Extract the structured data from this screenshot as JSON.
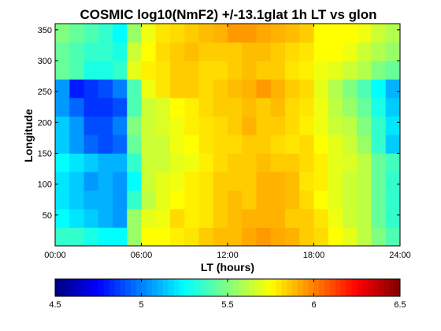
{
  "chart_data": {
    "type": "heatmap",
    "title": "COSMIC log10(NmF2) +/-13.1glat 1h LT vs glon",
    "xlabel": "LT (hours)",
    "ylabel": "Longitude",
    "x_range": [
      0,
      24
    ],
    "y_range": [
      0,
      360
    ],
    "x_ticks": [
      {
        "value": 0,
        "label": "00:00"
      },
      {
        "value": 6,
        "label": "06:00"
      },
      {
        "value": 12,
        "label": "12:00"
      },
      {
        "value": 18,
        "label": "18:00"
      },
      {
        "value": 24,
        "label": "24:00"
      }
    ],
    "y_ticks": [
      {
        "value": 50,
        "label": "50"
      },
      {
        "value": 100,
        "label": "100"
      },
      {
        "value": 150,
        "label": "150"
      },
      {
        "value": 200,
        "label": "200"
      },
      {
        "value": 250,
        "label": "250"
      },
      {
        "value": 300,
        "label": "300"
      },
      {
        "value": 350,
        "label": "350"
      }
    ],
    "x_bin_hours": 1,
    "y_edges": [
      0,
      30,
      60,
      90,
      120,
      150,
      180,
      210,
      240,
      270,
      300,
      330,
      360
    ],
    "colorbar": {
      "colormap": "jet",
      "range": [
        4.5,
        6.5
      ],
      "ticks": [
        {
          "value": 4.5,
          "label": "4.5"
        },
        {
          "value": 5,
          "label": "5"
        },
        {
          "value": 5.5,
          "label": "5.5"
        },
        {
          "value": 6,
          "label": "6"
        },
        {
          "value": 6.5,
          "label": "6.5"
        }
      ]
    },
    "rows": [
      [
        5.35,
        5.35,
        5.3,
        5.25,
        5.25,
        5.55,
        5.75,
        5.75,
        5.78,
        5.8,
        5.85,
        5.88,
        5.88,
        5.92,
        5.95,
        5.92,
        5.9,
        5.85,
        5.82,
        5.75,
        5.7,
        5.62,
        5.5,
        5.4
      ],
      [
        5.25,
        5.2,
        5.15,
        5.1,
        5.05,
        5.55,
        5.7,
        5.72,
        5.82,
        5.78,
        5.8,
        5.85,
        5.88,
        5.9,
        5.9,
        5.9,
        5.85,
        5.85,
        5.8,
        5.72,
        5.65,
        5.62,
        5.45,
        5.35
      ],
      [
        5.2,
        5.15,
        5.1,
        5.1,
        5.05,
        5.35,
        5.62,
        5.7,
        5.75,
        5.78,
        5.8,
        5.85,
        5.88,
        5.85,
        5.9,
        5.9,
        5.88,
        5.82,
        5.75,
        5.7,
        5.65,
        5.62,
        5.45,
        5.35
      ],
      [
        5.2,
        5.15,
        5.05,
        5.1,
        5.05,
        5.25,
        5.65,
        5.7,
        5.72,
        5.78,
        5.8,
        5.85,
        5.85,
        5.85,
        5.9,
        5.9,
        5.88,
        5.8,
        5.78,
        5.7,
        5.65,
        5.62,
        5.45,
        5.35
      ],
      [
        5.25,
        5.2,
        5.15,
        5.1,
        5.1,
        5.35,
        5.65,
        5.65,
        5.7,
        5.72,
        5.78,
        5.82,
        5.85,
        5.85,
        5.88,
        5.85,
        5.85,
        5.82,
        5.78,
        5.7,
        5.68,
        5.62,
        5.45,
        5.38
      ],
      [
        5.15,
        5.05,
        4.95,
        4.9,
        4.95,
        5.45,
        5.65,
        5.65,
        5.72,
        5.75,
        5.8,
        5.82,
        5.82,
        5.85,
        5.85,
        5.82,
        5.8,
        5.82,
        5.75,
        5.7,
        5.65,
        5.55,
        5.35,
        5.15
      ],
      [
        5.15,
        5.05,
        4.9,
        4.9,
        5.0,
        5.5,
        5.65,
        5.68,
        5.72,
        5.78,
        5.8,
        5.82,
        5.85,
        5.9,
        5.85,
        5.85,
        5.82,
        5.78,
        5.72,
        5.65,
        5.62,
        5.5,
        5.35,
        5.2
      ],
      [
        5.05,
        4.95,
        4.85,
        4.85,
        4.9,
        5.4,
        5.65,
        5.68,
        5.75,
        5.78,
        5.82,
        5.85,
        5.85,
        5.88,
        5.85,
        5.88,
        5.82,
        5.8,
        5.72,
        5.62,
        5.55,
        5.45,
        5.3,
        5.15
      ],
      [
        5.05,
        4.8,
        4.85,
        4.9,
        5.0,
        5.4,
        5.72,
        5.8,
        5.85,
        5.85,
        5.82,
        5.85,
        5.88,
        5.9,
        5.95,
        5.9,
        5.85,
        5.82,
        5.7,
        5.6,
        5.5,
        5.4,
        5.25,
        5.1
      ],
      [
        5.45,
        5.4,
        5.3,
        5.3,
        5.35,
        5.7,
        5.78,
        5.8,
        5.85,
        5.85,
        5.82,
        5.82,
        5.85,
        5.88,
        5.85,
        5.85,
        5.8,
        5.78,
        5.72,
        5.7,
        5.65,
        5.6,
        5.5,
        5.45
      ],
      [
        5.45,
        5.4,
        5.35,
        5.35,
        5.3,
        5.65,
        5.75,
        5.82,
        5.85,
        5.88,
        5.85,
        5.85,
        5.85,
        5.88,
        5.88,
        5.85,
        5.82,
        5.8,
        5.75,
        5.75,
        5.72,
        5.65,
        5.6,
        5.55
      ],
      [
        5.5,
        5.45,
        5.4,
        5.35,
        5.25,
        5.55,
        5.72,
        5.8,
        5.82,
        5.85,
        5.88,
        5.9,
        5.95,
        5.95,
        5.92,
        5.9,
        5.88,
        5.85,
        5.75,
        5.75,
        5.75,
        5.72,
        5.65,
        5.6
      ]
    ]
  }
}
